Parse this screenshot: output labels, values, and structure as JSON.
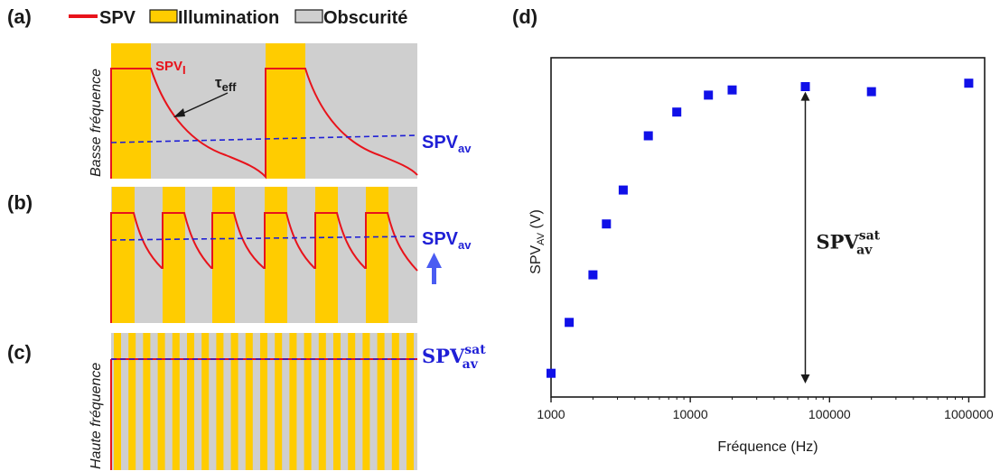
{
  "colors": {
    "spv": "#e8131b",
    "illumination": "#ffcc00",
    "darkness": "#cfcfcf",
    "average": "#1f1fd6",
    "marker": "#1010e8",
    "arrow_up": "#4a5cf2"
  },
  "panels": {
    "a": "(a)",
    "b": "(b)",
    "c": "(c)",
    "d": "(d)"
  },
  "legend": {
    "spv": "SPV",
    "illumination": "Illumination",
    "darkness": "Obscurité"
  },
  "labels": {
    "low_freq": "Basse fréquence",
    "high_freq": "Haute fréquence",
    "spv_i_main": "SPV",
    "spv_i_sub": "I",
    "tau_main": "τ",
    "tau_sub": "eff",
    "spv_av_main": "SPV",
    "spv_av_sub": "av",
    "spv_sat_main": "SPV",
    "spv_sat_sub": "av",
    "spv_sat_sup": "sat"
  },
  "chart_data": {
    "type": "scatter",
    "x_scale": "log",
    "xlabel": "Fréquence (Hz)",
    "ylabel_main": "SPV",
    "ylabel_sub": "AV",
    "ylabel_unit": " (V)",
    "xlim": [
      1000,
      1300000
    ],
    "ylim": [
      0,
      1
    ],
    "y_ticks_visible": false,
    "x_ticks": [
      1000,
      10000,
      100000,
      1000000
    ],
    "x_tick_labels": [
      "1000",
      "10000",
      "100000",
      "1000000"
    ],
    "x": [
      1000,
      1350,
      2000,
      2500,
      3300,
      5000,
      8000,
      13500,
      20000,
      67000,
      200000,
      1000000
    ],
    "y": [
      0.07,
      0.22,
      0.36,
      0.51,
      0.61,
      0.77,
      0.84,
      0.89,
      0.905,
      0.915,
      0.9,
      0.925
    ],
    "annotation": {
      "x": 67000,
      "y_from": 0.04,
      "y_to": 0.9,
      "label_main": "SPV",
      "label_sub": "av",
      "label_sup": "sat"
    }
  }
}
